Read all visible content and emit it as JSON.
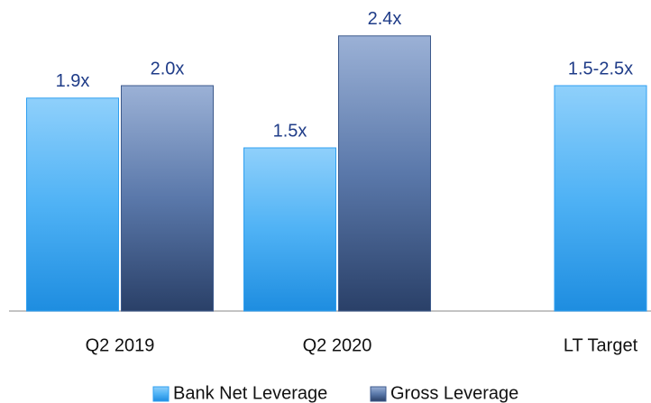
{
  "chart_data": {
    "type": "bar",
    "categories": [
      "Q2 2019",
      "Q2 2020",
      "LT Target"
    ],
    "series": [
      {
        "name": "Bank Net Leverage",
        "color": "#2f9ff0",
        "values": [
          1.9,
          1.5,
          2.0
        ],
        "value_labels": [
          "1.9x",
          "1.5x",
          "1.5-2.5x"
        ]
      },
      {
        "name": "Gross Leverage",
        "color": "#3d5a8c",
        "values": [
          2.0,
          2.4,
          null
        ],
        "value_labels": [
          "2.0x",
          "2.4x",
          null
        ]
      }
    ]
  }
}
